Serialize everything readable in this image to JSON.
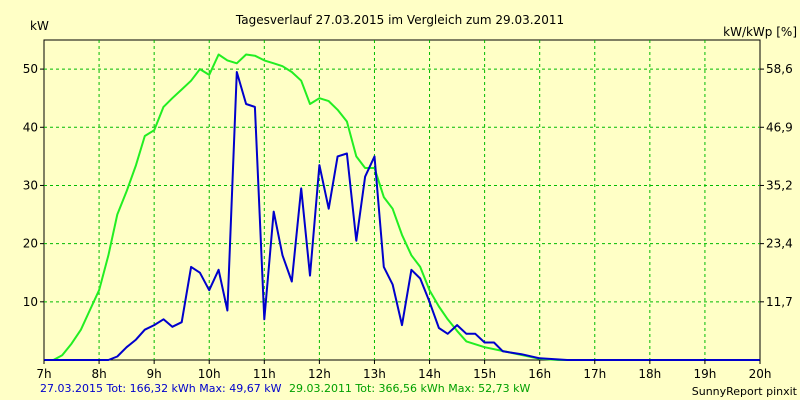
{
  "chart_data": {
    "type": "line",
    "title": "Tagesverlauf 27.03.2015 im Vergleich zum 29.03.2011",
    "ylabel_left": "kW",
    "ylabel_right": "kW/kWp [%]",
    "xlim": [
      7,
      20
    ],
    "ylim": [
      0,
      55
    ],
    "grid": true,
    "x_ticks": [
      {
        "x": 7,
        "label": "7h"
      },
      {
        "x": 8,
        "label": "8h"
      },
      {
        "x": 9,
        "label": "9h"
      },
      {
        "x": 10,
        "label": "10h"
      },
      {
        "x": 11,
        "label": "11h"
      },
      {
        "x": 12,
        "label": "12h"
      },
      {
        "x": 13,
        "label": "13h"
      },
      {
        "x": 14,
        "label": "14h"
      },
      {
        "x": 15,
        "label": "15h"
      },
      {
        "x": 16,
        "label": "16h"
      },
      {
        "x": 17,
        "label": "17h"
      },
      {
        "x": 18,
        "label": "18h"
      },
      {
        "x": 19,
        "label": "19h"
      },
      {
        "x": 20,
        "label": "20h"
      }
    ],
    "y_ticks_left": [
      {
        "y": 10,
        "label": "10"
      },
      {
        "y": 20,
        "label": "20"
      },
      {
        "y": 30,
        "label": "30"
      },
      {
        "y": 40,
        "label": "40"
      },
      {
        "y": 50,
        "label": "50"
      }
    ],
    "y_ticks_right": [
      {
        "y": 10,
        "label": "11,7"
      },
      {
        "y": 20,
        "label": "23,4"
      },
      {
        "y": 30,
        "label": "35,2"
      },
      {
        "y": 40,
        "label": "46,9"
      },
      {
        "y": 50,
        "label": "58,6"
      }
    ],
    "series": [
      {
        "name": "27.03.2015",
        "color": "#0000cc",
        "legend_text": "27.03.2015 Tot: 166,32 kWh Max: 49,67 kW",
        "points": [
          [
            7.0,
            0
          ],
          [
            7.5,
            0
          ],
          [
            8.0,
            0
          ],
          [
            8.17,
            0
          ],
          [
            8.33,
            0.6
          ],
          [
            8.5,
            2.2
          ],
          [
            8.67,
            3.5
          ],
          [
            8.83,
            5.2
          ],
          [
            9.0,
            6.0
          ],
          [
            9.17,
            7.0
          ],
          [
            9.33,
            5.7
          ],
          [
            9.5,
            6.5
          ],
          [
            9.67,
            16
          ],
          [
            9.83,
            15
          ],
          [
            10.0,
            12
          ],
          [
            10.17,
            15.5
          ],
          [
            10.33,
            8.5
          ],
          [
            10.5,
            49.5
          ],
          [
            10.67,
            44
          ],
          [
            10.83,
            43.5
          ],
          [
            11.0,
            7
          ],
          [
            11.17,
            25.5
          ],
          [
            11.33,
            18
          ],
          [
            11.5,
            13.5
          ],
          [
            11.67,
            29.5
          ],
          [
            11.83,
            14.5
          ],
          [
            12.0,
            33.5
          ],
          [
            12.17,
            26
          ],
          [
            12.33,
            35
          ],
          [
            12.5,
            35.5
          ],
          [
            12.67,
            20.5
          ],
          [
            12.83,
            31.5
          ],
          [
            13.0,
            35
          ],
          [
            13.17,
            16
          ],
          [
            13.33,
            13
          ],
          [
            13.5,
            6
          ],
          [
            13.67,
            15.5
          ],
          [
            13.83,
            14
          ],
          [
            14.0,
            10
          ],
          [
            14.17,
            5.5
          ],
          [
            14.33,
            4.5
          ],
          [
            14.5,
            6
          ],
          [
            14.67,
            4.5
          ],
          [
            14.83,
            4.5
          ],
          [
            15.0,
            3.0
          ],
          [
            15.17,
            3.0
          ],
          [
            15.33,
            1.5
          ],
          [
            15.67,
            1.0
          ],
          [
            16.0,
            0.3
          ],
          [
            16.5,
            0
          ],
          [
            17.0,
            0
          ],
          [
            20.0,
            0
          ]
        ]
      },
      {
        "name": "29.03.2011",
        "color": "#22ee22",
        "legend_text": "29.03.2011 Tot: 366,56 kWh Max: 52,73 kW",
        "points": [
          [
            7.0,
            0
          ],
          [
            7.17,
            0
          ],
          [
            7.33,
            0.8
          ],
          [
            7.5,
            2.8
          ],
          [
            7.67,
            5.2
          ],
          [
            7.83,
            8.5
          ],
          [
            8.0,
            12
          ],
          [
            8.17,
            18
          ],
          [
            8.33,
            25
          ],
          [
            8.5,
            29
          ],
          [
            8.67,
            33.5
          ],
          [
            8.83,
            38.5
          ],
          [
            9.0,
            39.5
          ],
          [
            9.17,
            43.5
          ],
          [
            9.33,
            45
          ],
          [
            9.5,
            46.5
          ],
          [
            9.67,
            48
          ],
          [
            9.83,
            50
          ],
          [
            10.0,
            49
          ],
          [
            10.17,
            52.5
          ],
          [
            10.33,
            51.5
          ],
          [
            10.5,
            51
          ],
          [
            10.67,
            52.5
          ],
          [
            10.83,
            52.3
          ],
          [
            11.0,
            51.5
          ],
          [
            11.17,
            51
          ],
          [
            11.33,
            50.5
          ],
          [
            11.5,
            49.5
          ],
          [
            11.67,
            48
          ],
          [
            11.83,
            44
          ],
          [
            12.0,
            45
          ],
          [
            12.17,
            44.5
          ],
          [
            12.33,
            43
          ],
          [
            12.5,
            41
          ],
          [
            12.67,
            35
          ],
          [
            12.83,
            33
          ],
          [
            13.0,
            33
          ],
          [
            13.17,
            28
          ],
          [
            13.33,
            26
          ],
          [
            13.5,
            21.5
          ],
          [
            13.67,
            18
          ],
          [
            13.83,
            16
          ],
          [
            14.0,
            12
          ],
          [
            14.17,
            9.2
          ],
          [
            14.33,
            7
          ],
          [
            14.5,
            5
          ],
          [
            14.67,
            3.2
          ],
          [
            15.0,
            2.2
          ],
          [
            15.5,
            1.2
          ],
          [
            16.0,
            0.2
          ],
          [
            16.33,
            0
          ],
          [
            17.0,
            0
          ],
          [
            20.0,
            0
          ]
        ]
      }
    ],
    "footer_right": "SunnyReport pinxit"
  }
}
